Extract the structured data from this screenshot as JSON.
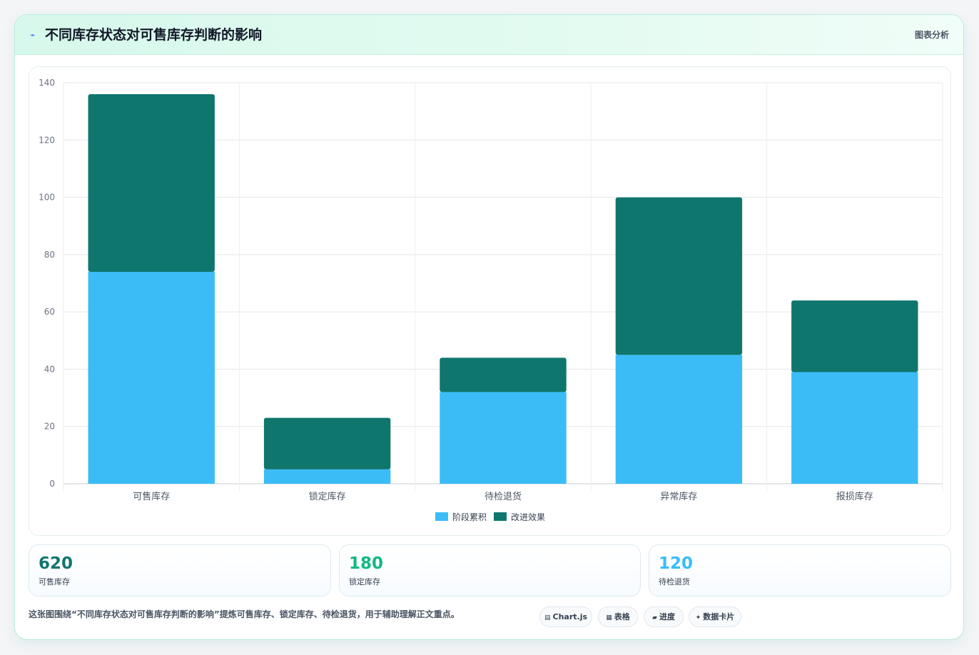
{
  "header": {
    "icon": "lightning-icon",
    "title": "不同库存状态对可售库存判断的影响",
    "tag": "图表分析"
  },
  "chart_data": {
    "type": "bar",
    "stacked": true,
    "categories": [
      "可售库存",
      "锁定库存",
      "待检退货",
      "异常库存",
      "报损库存"
    ],
    "series": [
      {
        "name": "阶段累积",
        "color": "#3bbcf7",
        "values": [
          74,
          5,
          32,
          45,
          39
        ]
      },
      {
        "name": "改进效果",
        "color": "#0f766e",
        "values": [
          62,
          18,
          12,
          55,
          25
        ]
      }
    ],
    "ylim": [
      0,
      140
    ],
    "yticks": [
      0,
      20,
      40,
      60,
      80,
      100,
      120,
      140
    ],
    "grid": true,
    "legend": "bottom"
  },
  "stats": [
    {
      "value": "620",
      "label": "可售库存",
      "color": "#0f766e"
    },
    {
      "value": "180",
      "label": "锁定库存",
      "color": "#10b981"
    },
    {
      "value": "120",
      "label": "待检退货",
      "color": "#38bdf8"
    }
  ],
  "caption": "这张图围绕“不同库存状态对可售库存判断的影响”提炼可售库存、锁定库存、待检退货，用于辅助理解正文重点。",
  "pills": [
    {
      "icon": "chart-icon",
      "glyph": "▤",
      "label": "Chart.js"
    },
    {
      "icon": "table-icon",
      "glyph": "▦",
      "label": "表格"
    },
    {
      "icon": "progress-icon",
      "glyph": "▰",
      "label": "进度"
    },
    {
      "icon": "card-icon",
      "glyph": "✦",
      "label": "数据卡片"
    }
  ]
}
